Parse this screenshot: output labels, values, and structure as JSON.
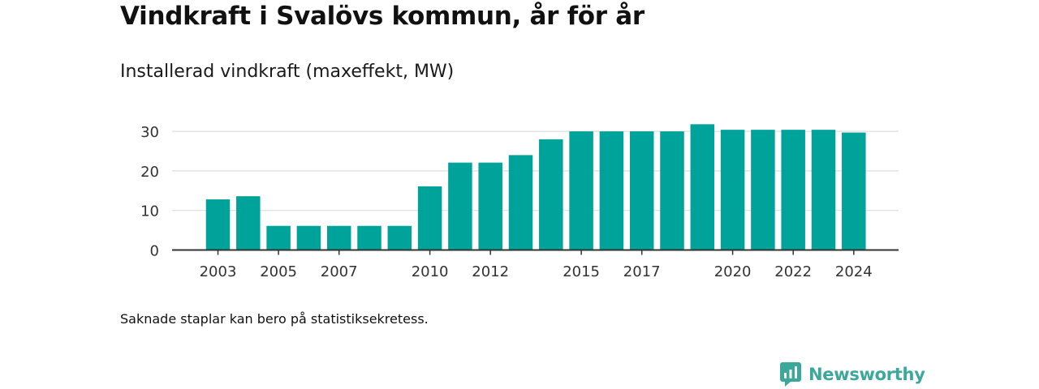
{
  "title": "Vindkraft i Svalövs kommun, år för år",
  "subtitle": "Installerad vindkraft (maxeffekt, MW)",
  "note": "Saknade staplar kan bero på statistiksekretess.",
  "brand": {
    "name": "Newsworthy",
    "icon": "newsworthy-logo-icon",
    "color": "#3aa89a"
  },
  "colors": {
    "bar": "#00a39a",
    "grid": "#dddddd",
    "axis": "#333333",
    "text": "#333333"
  },
  "chart_data": {
    "type": "bar",
    "categories": [
      "2003",
      "2004",
      "2005",
      "2006",
      "2007",
      "2008",
      "2009",
      "2010",
      "2011",
      "2012",
      "2013",
      "2014",
      "2015",
      "2016",
      "2017",
      "2018",
      "2019",
      "2020",
      "2021",
      "2022",
      "2023",
      "2024"
    ],
    "values": [
      12.8,
      13.6,
      6.1,
      6.1,
      6.1,
      6.1,
      6.1,
      16.1,
      22.1,
      22.1,
      24.0,
      28.0,
      30.0,
      30.0,
      30.0,
      30.0,
      31.8,
      30.4,
      30.4,
      30.4,
      30.4,
      29.7
    ],
    "x_tick_labels": [
      "2003",
      "2005",
      "2007",
      "2010",
      "2012",
      "2015",
      "2017",
      "2020",
      "2022",
      "2024"
    ],
    "y_ticks": [
      0,
      10,
      20,
      30
    ],
    "ylim": [
      0,
      33
    ],
    "grid": true,
    "legend": "none",
    "xlabel": "",
    "ylabel": ""
  }
}
